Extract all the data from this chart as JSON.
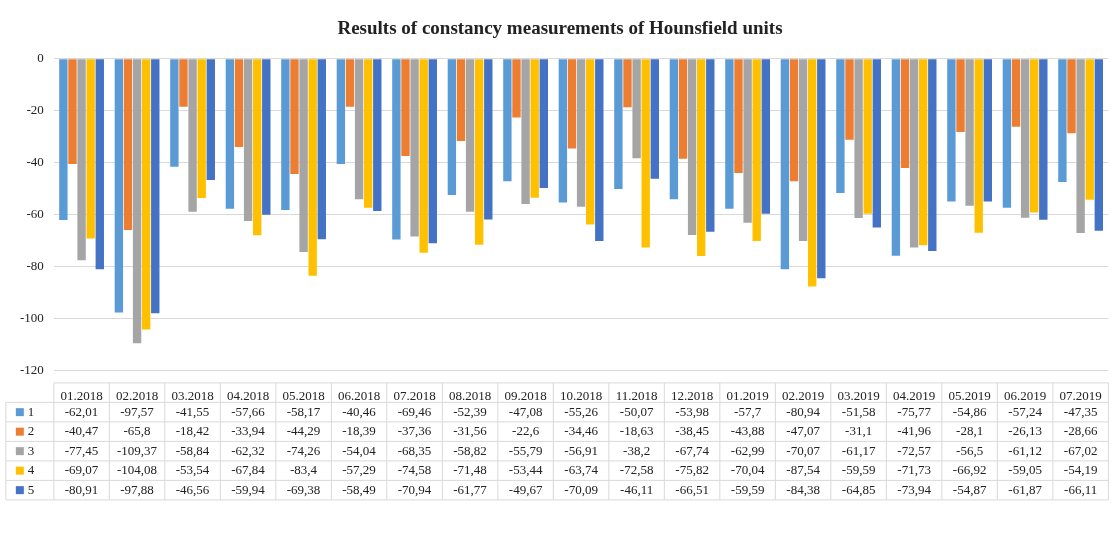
{
  "chart_data": {
    "type": "bar",
    "title": "Results of constancy measurements of Hounsfield units",
    "categories": [
      "01.2018",
      "02.2018",
      "03.2018",
      "04.2018",
      "05.2018",
      "06.2018",
      "07.2018",
      "08.2018",
      "09.2018",
      "10.2018",
      "11.2018",
      "12.2018",
      "01.2019",
      "02.2019",
      "03.2019",
      "04.2019",
      "05.2019",
      "06.2019",
      "07.2019"
    ],
    "ylim": [
      -120,
      0
    ],
    "yticks": [
      -120,
      -100,
      -80,
      -60,
      -40,
      -20,
      0
    ],
    "grid": "y",
    "legend": "bottom left",
    "series": [
      {
        "name": "1",
        "color": "#5b9bd5",
        "values": [
          -62.01,
          -97.57,
          -41.55,
          -57.66,
          -58.17,
          -40.46,
          -69.46,
          -52.39,
          -47.08,
          -55.26,
          -50.07,
          -53.98,
          -57.7,
          -80.94,
          -51.58,
          -75.77,
          -54.86,
          -57.24,
          -47.35
        ],
        "value_labels": [
          "-62,01",
          "-97,57",
          "-41,55",
          "-57,66",
          "-58,17",
          "-40,46",
          "-69,46",
          "-52,39",
          "-47,08",
          "-55,26",
          "-50,07",
          "-53,98",
          "-57,7",
          "-80,94",
          "-51,58",
          "-75,77",
          "-54,86",
          "-57,24",
          "-47,35"
        ]
      },
      {
        "name": "2",
        "color": "#ed7d31",
        "values": [
          -40.47,
          -65.8,
          -18.42,
          -33.94,
          -44.29,
          -18.39,
          -37.36,
          -31.56,
          -22.6,
          -34.46,
          -18.63,
          -38.45,
          -43.88,
          -47.07,
          -31.1,
          -41.96,
          -28.1,
          -26.13,
          -28.66
        ],
        "value_labels": [
          "-40,47",
          "-65,8",
          "-18,42",
          "-33,94",
          "-44,29",
          "-18,39",
          "-37,36",
          "-31,56",
          "-22,6",
          "-34,46",
          "-18,63",
          "-38,45",
          "-43,88",
          "-47,07",
          "-31,1",
          "-41,96",
          "-28,1",
          "-26,13",
          "-28,66"
        ]
      },
      {
        "name": "3",
        "color": "#a5a5a5",
        "values": [
          -77.45,
          -109.37,
          -58.84,
          -62.32,
          -74.26,
          -54.04,
          -68.35,
          -58.82,
          -55.79,
          -56.91,
          -38.2,
          -67.74,
          -62.99,
          -70.07,
          -61.17,
          -72.57,
          -56.5,
          -61.12,
          -67.02
        ],
        "value_labels": [
          "-77,45",
          "-109,37",
          "-58,84",
          "-62,32",
          "-74,26",
          "-54,04",
          "-68,35",
          "-58,82",
          "-55,79",
          "-56,91",
          "-38,2",
          "-67,74",
          "-62,99",
          "-70,07",
          "-61,17",
          "-72,57",
          "-56,5",
          "-61,12",
          "-67,02"
        ]
      },
      {
        "name": "4",
        "color": "#ffc000",
        "values": [
          -69.07,
          -104.08,
          -53.54,
          -67.84,
          -83.4,
          -57.29,
          -74.58,
          -71.48,
          -53.44,
          -63.74,
          -72.58,
          -75.82,
          -70.04,
          -87.54,
          -59.59,
          -71.73,
          -66.92,
          -59.05,
          -54.19
        ],
        "value_labels": [
          "-69,07",
          "-104,08",
          "-53,54",
          "-67,84",
          "-83,4",
          "-57,29",
          "-74,58",
          "-71,48",
          "-53,44",
          "-63,74",
          "-72,58",
          "-75,82",
          "-70,04",
          "-87,54",
          "-59,59",
          "-71,73",
          "-66,92",
          "-59,05",
          "-54,19"
        ]
      },
      {
        "name": "5",
        "color": "#4472c4",
        "values": [
          -80.91,
          -97.88,
          -46.56,
          -59.94,
          -69.38,
          -58.49,
          -70.94,
          -61.77,
          -49.67,
          -70.09,
          -46.11,
          -66.51,
          -59.59,
          -84.38,
          -64.85,
          -73.94,
          -54.87,
          -61.87,
          -66.11
        ],
        "value_labels": [
          "-80,91",
          "-97,88",
          "-46,56",
          "-59,94",
          "-69,38",
          "-58,49",
          "-70,94",
          "-61,77",
          "-49,67",
          "-70,09",
          "-46,11",
          "-66,51",
          "-59,59",
          "-84,38",
          "-64,85",
          "-73,94",
          "-54,87",
          "-61,87",
          "-66,11"
        ]
      }
    ]
  }
}
